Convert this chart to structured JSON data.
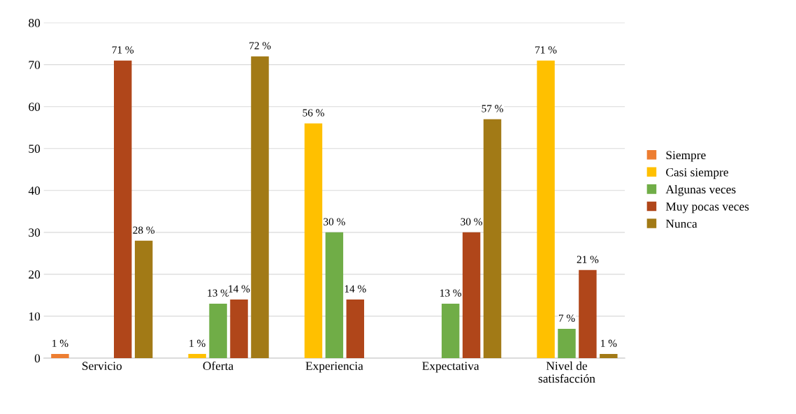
{
  "chart_data": {
    "type": "bar",
    "categories": [
      "Servicio",
      "Oferta",
      "Experiencia",
      "Expectativa",
      "Nivel de\nsatisfacción"
    ],
    "series": [
      {
        "name": "Siempre",
        "color": "#ed7d31",
        "values": [
          1,
          null,
          null,
          null,
          null
        ],
        "value_labels": [
          "1 %",
          null,
          null,
          null,
          null
        ]
      },
      {
        "name": "Casi siempre",
        "color": "#ffc000",
        "values": [
          null,
          1,
          56,
          null,
          71
        ],
        "value_labels": [
          null,
          "1 %",
          "56 %",
          null,
          "71 %"
        ]
      },
      {
        "name": "Algunas veces",
        "color": "#70ad47",
        "values": [
          null,
          13,
          30,
          13,
          7
        ],
        "value_labels": [
          null,
          "13 %",
          "30 %",
          "13 %",
          "7 %"
        ]
      },
      {
        "name": "Muy pocas veces",
        "color": "#b0461a",
        "values": [
          71,
          14,
          14,
          30,
          21
        ],
        "value_labels": [
          "71 %",
          "14 %",
          "14 %",
          "30 %",
          "21 %"
        ]
      },
      {
        "name": "Nunca",
        "color": "#a27a16",
        "values": [
          28,
          72,
          null,
          57,
          1
        ],
        "value_labels": [
          "28 %",
          "72 %",
          null,
          "57 %",
          "1 %"
        ]
      }
    ],
    "ylim": [
      0,
      80
    ],
    "yticks": [
      0,
      10,
      20,
      30,
      40,
      50,
      60,
      70,
      80
    ],
    "grid": "y",
    "legend": "right"
  }
}
